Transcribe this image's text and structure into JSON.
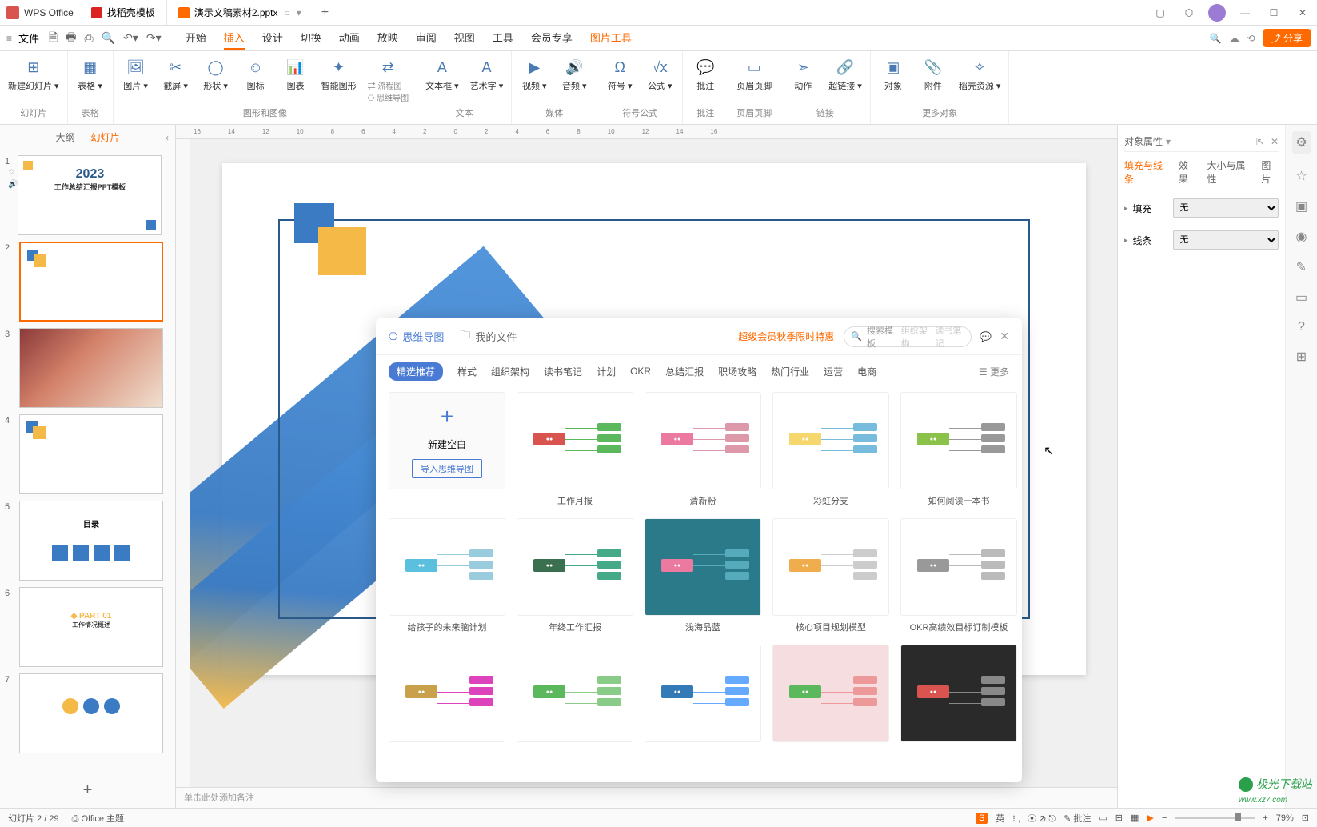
{
  "app": {
    "name": "WPS Office"
  },
  "tabs": [
    {
      "label": "找稻壳模板"
    },
    {
      "label": "演示文稿素材2.pptx",
      "active": true
    }
  ],
  "menubar": {
    "file": "文件",
    "tabs": [
      "开始",
      "插入",
      "设计",
      "切换",
      "动画",
      "放映",
      "审阅",
      "视图",
      "工具",
      "会员专享",
      "图片工具"
    ],
    "active_index": 1,
    "orange_extra_index": 10,
    "share": "分享"
  },
  "ribbon": {
    "groups": [
      {
        "label": "幻灯片",
        "items": [
          {
            "icon": "⊞",
            "label": "新建幻灯片",
            "drop": "▾"
          }
        ]
      },
      {
        "label": "表格",
        "items": [
          {
            "icon": "▦",
            "label": "表格",
            "drop": "▾"
          }
        ]
      },
      {
        "label": "图形和图像",
        "items": [
          {
            "icon": "🖼",
            "label": "图片",
            "drop": "▾"
          },
          {
            "icon": "✂",
            "label": "截屏",
            "drop": "▾"
          },
          {
            "icon": "◯",
            "label": "形状",
            "drop": "▾"
          },
          {
            "icon": "☺",
            "label": "图标"
          },
          {
            "icon": "📊",
            "label": "图表"
          },
          {
            "icon": "✦",
            "label": "智能图形"
          },
          {
            "icon": "⇄",
            "label": "流程图",
            "sub": "思维导图"
          }
        ]
      },
      {
        "label": "文本",
        "items": [
          {
            "icon": "A",
            "label": "文本框",
            "drop": "▾"
          },
          {
            "icon": "A",
            "label": "艺术字",
            "drop": "▾"
          }
        ]
      },
      {
        "label": "媒体",
        "items": [
          {
            "icon": "▶",
            "label": "视频",
            "drop": "▾"
          },
          {
            "icon": "🔊",
            "label": "音频",
            "drop": "▾"
          }
        ]
      },
      {
        "label": "符号公式",
        "items": [
          {
            "icon": "Ω",
            "label": "符号",
            "drop": "▾"
          },
          {
            "icon": "√x",
            "label": "公式",
            "drop": "▾"
          }
        ]
      },
      {
        "label": "批注",
        "items": [
          {
            "icon": "💬",
            "label": "批注"
          }
        ]
      },
      {
        "label": "页眉页脚",
        "items": [
          {
            "icon": "▭",
            "label": "页眉页脚"
          }
        ]
      },
      {
        "label": "链接",
        "items": [
          {
            "icon": "➣",
            "label": "动作"
          },
          {
            "icon": "🔗",
            "label": "超链接",
            "drop": "▾"
          }
        ]
      },
      {
        "label": "更多对象",
        "items": [
          {
            "icon": "▣",
            "label": "对象"
          },
          {
            "icon": "📎",
            "label": "附件"
          },
          {
            "icon": "✧",
            "label": "稻壳资源",
            "drop": "▾"
          }
        ]
      }
    ]
  },
  "slidepanel": {
    "tabs": [
      "大纲",
      "幻灯片"
    ],
    "active": 1,
    "slides": [
      {
        "n": 1,
        "title": "2023",
        "sub": "工作总结汇报PPT模板"
      },
      {
        "n": 2,
        "selected": true
      },
      {
        "n": 3,
        "type": "photo"
      },
      {
        "n": 4
      },
      {
        "n": 5,
        "title": "目录"
      },
      {
        "n": 6,
        "title": "PART 01",
        "sub": "工作情况概述"
      },
      {
        "n": 7
      }
    ]
  },
  "prop": {
    "title": "对象属性",
    "tabs": [
      "填充与线条",
      "效果",
      "大小与属性",
      "图片"
    ],
    "active": 0,
    "rows": [
      {
        "label": "填充",
        "value": "无"
      },
      {
        "label": "线条",
        "value": "无"
      }
    ]
  },
  "mindmap": {
    "head_tabs": [
      {
        "icon": "⎔",
        "label": "思维导图"
      },
      {
        "icon": "🗀",
        "label": "我的文件"
      }
    ],
    "promo": "超级会员秋季限时特惠",
    "search_placeholder": "搜索模板",
    "search_hints": [
      "组织架构",
      "读书笔记"
    ],
    "categories": [
      "精选推荐",
      "样式",
      "组织架构",
      "读书笔记",
      "计划",
      "OKR",
      "总结汇报",
      "职场攻略",
      "热门行业",
      "运营",
      "电商"
    ],
    "more": "更多",
    "new_label": "新建空白",
    "import_label": "导入思维导图",
    "cards": [
      [
        {
          "type": "new"
        },
        {
          "cap": "工作月报",
          "bg": "#fff",
          "node": "#d9534f",
          "lines": "#5cb85c"
        },
        {
          "cap": "清新粉",
          "bg": "#fff",
          "node": "#ec7aa0",
          "lines": "#d9a"
        },
        {
          "cap": "彩虹分支",
          "bg": "#fff",
          "node": "#f5d76e",
          "lines": "#7bd"
        },
        {
          "cap": "如何阅读一本书",
          "bg": "#fff",
          "node": "#8bc34a",
          "lines": "#999"
        }
      ],
      [
        {
          "cap": "给孩子的未来脑计划",
          "bg": "#fff",
          "node": "#5bc0de",
          "lines": "#9cd"
        },
        {
          "cap": "年终工作汇报",
          "bg": "#fff",
          "node": "#3a7050",
          "lines": "#4a8"
        },
        {
          "cap": "浅海晶蓝",
          "bg": "#2a7a8a",
          "node": "#ec7aa0",
          "lines": "#5ab",
          "dark": true
        },
        {
          "cap": "核心项目规划模型",
          "bg": "#fff",
          "node": "#f0ad4e",
          "lines": "#ccc"
        },
        {
          "cap": "OKR高绩效目标订制模板",
          "bg": "#fff",
          "node": "#999",
          "lines": "#bbb"
        }
      ],
      [
        {
          "cap": "",
          "bg": "#fff",
          "node": "#c9a14a",
          "lines": "#d4b"
        },
        {
          "cap": "",
          "bg": "#fff",
          "node": "#5cb85c",
          "lines": "#8c8"
        },
        {
          "cap": "",
          "bg": "#fff",
          "node": "#337ab7",
          "lines": "#6af"
        },
        {
          "cap": "",
          "bg": "#f5dde0",
          "node": "#5cb85c",
          "lines": "#e99"
        },
        {
          "cap": "",
          "bg": "#2a2a2a",
          "node": "#d9534f",
          "lines": "#888",
          "dark": true
        }
      ]
    ]
  },
  "status": {
    "left": "幻灯片 2 / 29",
    "theme": "Office 主题",
    "lang": "英",
    "annotate": "批注",
    "zoom": "79%"
  },
  "notes_placeholder": "单击此处添加备注",
  "watermark": "极光下载站",
  "watermark_url": "www.xz7.com",
  "ruler_marks": [
    "16",
    "14",
    "12",
    "10",
    "8",
    "6",
    "4",
    "2",
    "0",
    "2",
    "4",
    "6",
    "8",
    "10",
    "12",
    "14",
    "16"
  ]
}
